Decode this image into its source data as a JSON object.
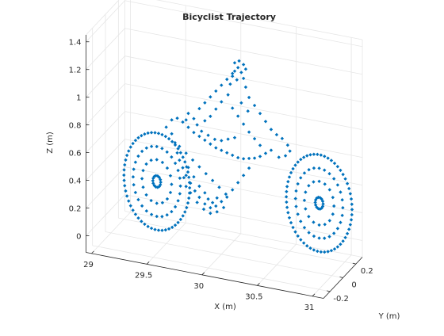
{
  "chart_data": {
    "type": "scatter3d",
    "title": "Bicyclist Trajectory",
    "xlabel": "X (m)",
    "ylabel": "Y (m)",
    "zlabel": "Z (m)",
    "xlim": [
      28.95,
      31.1
    ],
    "ylim": [
      -0.3,
      0.3
    ],
    "zlim": [
      -0.12,
      1.45
    ],
    "xticks": [
      "29",
      "29.5",
      "30",
      "30.5",
      "31"
    ],
    "yticks": [
      "-0.2",
      "0",
      "0.2"
    ],
    "zticks": [
      "0",
      "0.2",
      "0.4",
      "0.6",
      "0.8",
      "1",
      "1.2",
      "1.4"
    ],
    "xtick_values": [
      29,
      29.5,
      30,
      30.5,
      31
    ],
    "ytick_values": [
      -0.2,
      0,
      0.2
    ],
    "ztick_values": [
      0,
      0.2,
      0.4,
      0.6,
      0.8,
      1,
      1.2,
      1.4
    ],
    "grid": true,
    "marker": "diamond",
    "marker_color": "#0072bd",
    "wheels": [
      {
        "name_hidden": true,
        "center_x": 29.45,
        "center_z": 0.35,
        "radius": 0.35,
        "y": -0.06
      },
      {
        "name_hidden": true,
        "center_x": 30.85,
        "center_z": 0.35,
        "radius": 0.35,
        "y": 0.06
      }
    ],
    "frame_points": [
      [
        29.5,
        0.0,
        0.72
      ],
      [
        29.55,
        0.0,
        0.68
      ],
      [
        29.58,
        0.0,
        0.62
      ],
      [
        29.6,
        0.0,
        0.55
      ],
      [
        29.62,
        0.0,
        0.5
      ],
      [
        29.65,
        0.0,
        0.45
      ],
      [
        29.68,
        0.0,
        0.4
      ],
      [
        29.72,
        0.0,
        0.35
      ],
      [
        29.76,
        0.0,
        0.3
      ],
      [
        29.8,
        0.0,
        0.26
      ],
      [
        29.85,
        0.0,
        0.22
      ],
      [
        29.9,
        0.0,
        0.2
      ],
      [
        29.95,
        0.0,
        0.22
      ],
      [
        30.0,
        0.0,
        0.26
      ],
      [
        30.05,
        0.0,
        0.3
      ],
      [
        30.1,
        0.0,
        0.36
      ],
      [
        30.15,
        0.0,
        0.42
      ],
      [
        30.2,
        0.0,
        0.48
      ],
      [
        30.25,
        0.0,
        0.54
      ],
      [
        29.55,
        0.0,
        0.78
      ],
      [
        29.6,
        0.0,
        0.8
      ],
      [
        29.65,
        0.0,
        0.78
      ],
      [
        29.7,
        0.0,
        0.75
      ],
      [
        29.75,
        0.0,
        0.72
      ],
      [
        29.8,
        0.0,
        0.7
      ],
      [
        29.85,
        0.0,
        0.68
      ],
      [
        29.9,
        0.0,
        0.66
      ],
      [
        29.95,
        0.0,
        0.64
      ],
      [
        30.0,
        0.0,
        0.63
      ],
      [
        30.05,
        0.0,
        0.62
      ],
      [
        30.1,
        0.0,
        0.61
      ],
      [
        30.15,
        0.0,
        0.6
      ],
      [
        30.2,
        0.0,
        0.6
      ],
      [
        30.25,
        0.0,
        0.61
      ],
      [
        30.3,
        0.0,
        0.62
      ],
      [
        30.35,
        0.0,
        0.64
      ],
      [
        30.4,
        0.0,
        0.67
      ],
      [
        30.45,
        0.0,
        0.7
      ],
      [
        29.62,
        0.0,
        0.6
      ],
      [
        29.68,
        0.0,
        0.56
      ],
      [
        29.74,
        0.0,
        0.52
      ],
      [
        29.8,
        0.0,
        0.48
      ],
      [
        29.86,
        0.0,
        0.44
      ],
      [
        29.92,
        0.0,
        0.4
      ],
      [
        29.98,
        0.0,
        0.36
      ],
      [
        30.04,
        0.0,
        0.32
      ],
      [
        29.7,
        0.0,
        0.46
      ],
      [
        29.75,
        0.0,
        0.4
      ],
      [
        29.8,
        0.0,
        0.34
      ],
      [
        29.85,
        0.0,
        0.3
      ],
      [
        29.88,
        0.0,
        0.26
      ],
      [
        29.92,
        0.0,
        0.24
      ],
      [
        29.96,
        0.0,
        0.28
      ],
      [
        29.72,
        0.0,
        0.28
      ],
      [
        29.68,
        0.0,
        0.32
      ],
      [
        29.66,
        0.0,
        0.38
      ],
      [
        29.78,
        0.0,
        0.22
      ],
      [
        29.84,
        0.0,
        0.18
      ],
      [
        29.9,
        0.0,
        0.16
      ],
      [
        29.96,
        0.0,
        0.18
      ],
      [
        30.02,
        0.0,
        0.22
      ],
      [
        29.8,
        0.0,
        0.9
      ],
      [
        29.85,
        0.0,
        0.95
      ],
      [
        29.9,
        0.0,
        1.0
      ],
      [
        29.95,
        0.0,
        1.05
      ],
      [
        30.0,
        0.0,
        1.1
      ],
      [
        30.05,
        0.0,
        1.15
      ],
      [
        30.1,
        0.0,
        1.18
      ],
      [
        30.12,
        0.0,
        1.22
      ],
      [
        30.15,
        0.0,
        1.25
      ],
      [
        30.18,
        0.0,
        1.22
      ],
      [
        30.2,
        0.0,
        1.18
      ],
      [
        30.22,
        0.0,
        1.12
      ],
      [
        30.25,
        0.0,
        1.05
      ],
      [
        30.3,
        0.0,
        1.0
      ],
      [
        30.35,
        0.0,
        0.95
      ],
      [
        30.4,
        0.0,
        0.9
      ],
      [
        30.45,
        0.0,
        0.85
      ],
      [
        30.5,
        0.0,
        0.82
      ],
      [
        30.55,
        0.0,
        0.8
      ],
      [
        30.6,
        0.0,
        0.76
      ],
      [
        30.62,
        0.0,
        0.72
      ],
      [
        30.58,
        0.0,
        0.68
      ],
      [
        30.52,
        0.0,
        0.66
      ],
      [
        30.08,
        0.0,
        1.12
      ],
      [
        30.14,
        0.0,
        1.16
      ],
      [
        30.06,
        0.0,
        1.04
      ],
      [
        30.0,
        0.0,
        0.98
      ],
      [
        29.95,
        0.0,
        0.92
      ],
      [
        29.9,
        0.0,
        0.86
      ],
      [
        29.85,
        0.0,
        0.82
      ],
      [
        30.1,
        0.0,
        0.95
      ],
      [
        30.15,
        0.0,
        0.9
      ],
      [
        30.2,
        0.0,
        0.85
      ],
      [
        30.25,
        0.0,
        0.8
      ],
      [
        30.3,
        0.0,
        0.76
      ],
      [
        30.35,
        0.0,
        0.72
      ],
      [
        30.18,
        0.0,
        1.0
      ],
      [
        30.24,
        0.0,
        0.95
      ],
      [
        30.12,
        0.0,
        1.28
      ],
      [
        30.16,
        0.0,
        1.3
      ],
      [
        30.2,
        0.0,
        1.28
      ],
      [
        30.1,
        0.0,
        1.2
      ],
      [
        30.22,
        0.0,
        1.25
      ],
      [
        29.75,
        0.0,
        0.82
      ],
      [
        29.7,
        0.0,
        0.85
      ],
      [
        29.68,
        0.0,
        0.8
      ],
      [
        29.78,
        0.0,
        0.78
      ],
      [
        29.82,
        0.0,
        0.74
      ],
      [
        29.88,
        0.0,
        0.72
      ],
      [
        29.94,
        0.0,
        0.7
      ],
      [
        30.0,
        0.0,
        0.7
      ],
      [
        30.06,
        0.0,
        0.72
      ],
      [
        30.12,
        0.0,
        0.74
      ]
    ]
  }
}
